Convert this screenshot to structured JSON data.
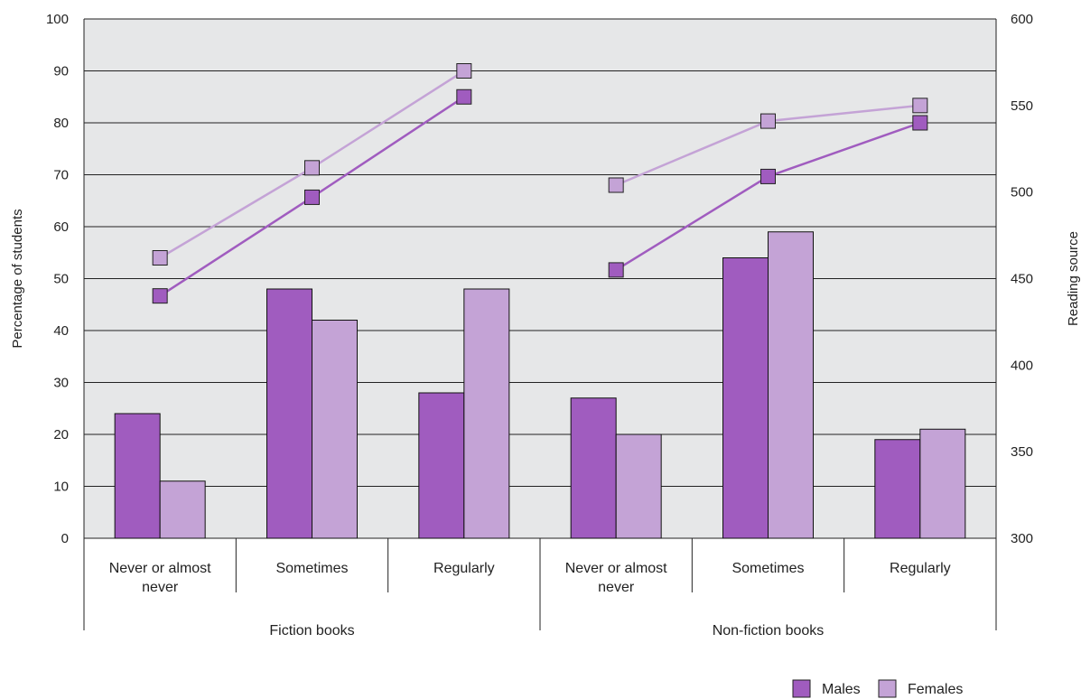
{
  "chart_data": {
    "type": "bar",
    "groups": [
      {
        "label": "Fiction books",
        "categories": [
          "Never or almost never",
          "Sometimes",
          "Regularly"
        ]
      },
      {
        "label": "Non-fiction books",
        "categories": [
          "Never or almost never",
          "Sometimes",
          "Regularly"
        ]
      }
    ],
    "y_left": {
      "label": "Percentage of students",
      "range": [
        0,
        100
      ],
      "ticks": [
        0,
        10,
        20,
        30,
        40,
        50,
        60,
        70,
        80,
        90,
        100
      ]
    },
    "y_right": {
      "label": "Reading source",
      "range": [
        300,
        600
      ],
      "ticks": [
        300,
        350,
        400,
        450,
        500,
        550,
        600
      ]
    },
    "bar_series": [
      {
        "name": "Males",
        "color": "#a05cbf",
        "values": [
          24,
          48,
          28,
          27,
          54,
          19
        ]
      },
      {
        "name": "Females",
        "color": "#c4a3d6",
        "values": [
          11,
          42,
          48,
          20,
          59,
          21
        ]
      }
    ],
    "line_series": [
      {
        "name": "Males",
        "color": "#a05cbf",
        "axis": "right",
        "values": [
          440,
          497,
          555,
          455,
          509,
          540
        ]
      },
      {
        "name": "Females",
        "color": "#c4a3d6",
        "axis": "right",
        "values": [
          462,
          514,
          570,
          504,
          541,
          550
        ]
      }
    ],
    "legend": {
      "position": "bottom-right",
      "items": [
        {
          "label": "Males",
          "color": "#a05cbf"
        },
        {
          "label": "Females",
          "color": "#c4a3d6"
        }
      ]
    },
    "grid": true,
    "plot_background": "#e6e7e8"
  }
}
